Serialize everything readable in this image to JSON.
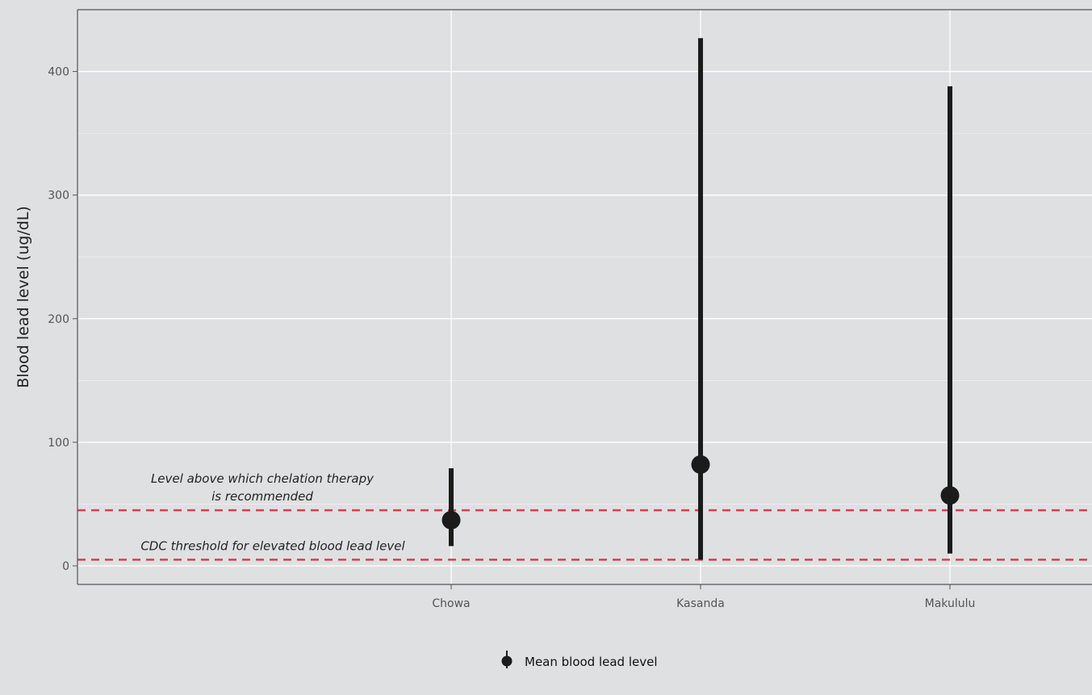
{
  "chart_data": {
    "type": "scatter",
    "title": "",
    "xlabel": "",
    "ylabel": "Blood lead level (ug/dL)",
    "categories": [
      "Chowa",
      "Kasanda",
      "Makululu"
    ],
    "series": [
      {
        "name": "Mean blood lead level",
        "values": [
          37,
          82,
          57
        ],
        "min": [
          16,
          5,
          10
        ],
        "max": [
          79,
          427,
          388
        ]
      }
    ],
    "ylim": [
      -15,
      450
    ],
    "yticks": [
      0,
      100,
      200,
      300,
      400
    ],
    "ytick_labels": [
      "0",
      "100",
      "200",
      "300",
      "400"
    ],
    "grid": true,
    "legend": "bottom",
    "reference_lines": [
      {
        "value": 45,
        "label_lines": [
          "Level above which chelation therapy",
          "is recommended"
        ]
      },
      {
        "value": 5,
        "label_lines": [
          "CDC threshold for elevated blood lead level"
        ]
      }
    ],
    "colors": {
      "panel": "#dfe0e2",
      "grid": "#ffffff",
      "point": "#1b1b1b",
      "reference": "#d64050"
    }
  }
}
